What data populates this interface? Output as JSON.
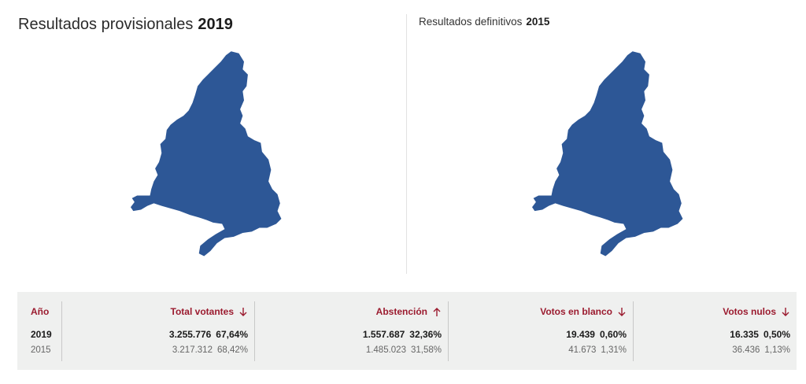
{
  "left_panel": {
    "title": "Resultados provisionales",
    "year": "2019"
  },
  "right_panel": {
    "title": "Resultados definitivos",
    "year": "2015"
  },
  "map": {
    "region_fill": "#2d5796",
    "region_icon": "madrid-region-map"
  },
  "accent_color": "#9b1b2f",
  "table": {
    "year_header": "Año",
    "rows_years": [
      "2019",
      "2015"
    ],
    "columns": [
      {
        "label": "Total votantes",
        "arrow": "down",
        "values": [
          {
            "num": "3.255.776",
            "pct": "67,64%"
          },
          {
            "num": "3.217.312",
            "pct": "68,42%"
          }
        ]
      },
      {
        "label": "Abstención",
        "arrow": "up",
        "values": [
          {
            "num": "1.557.687",
            "pct": "32,36%"
          },
          {
            "num": "1.485.023",
            "pct": "31,58%"
          }
        ]
      },
      {
        "label": "Votos en blanco",
        "arrow": "down",
        "values": [
          {
            "num": "19.439",
            "pct": "0,60%"
          },
          {
            "num": "41.673",
            "pct": "1,31%"
          }
        ]
      },
      {
        "label": "Votos nulos",
        "arrow": "down",
        "values": [
          {
            "num": "16.335",
            "pct": "0,50%"
          },
          {
            "num": "36.436",
            "pct": "1,13%"
          }
        ]
      }
    ]
  }
}
